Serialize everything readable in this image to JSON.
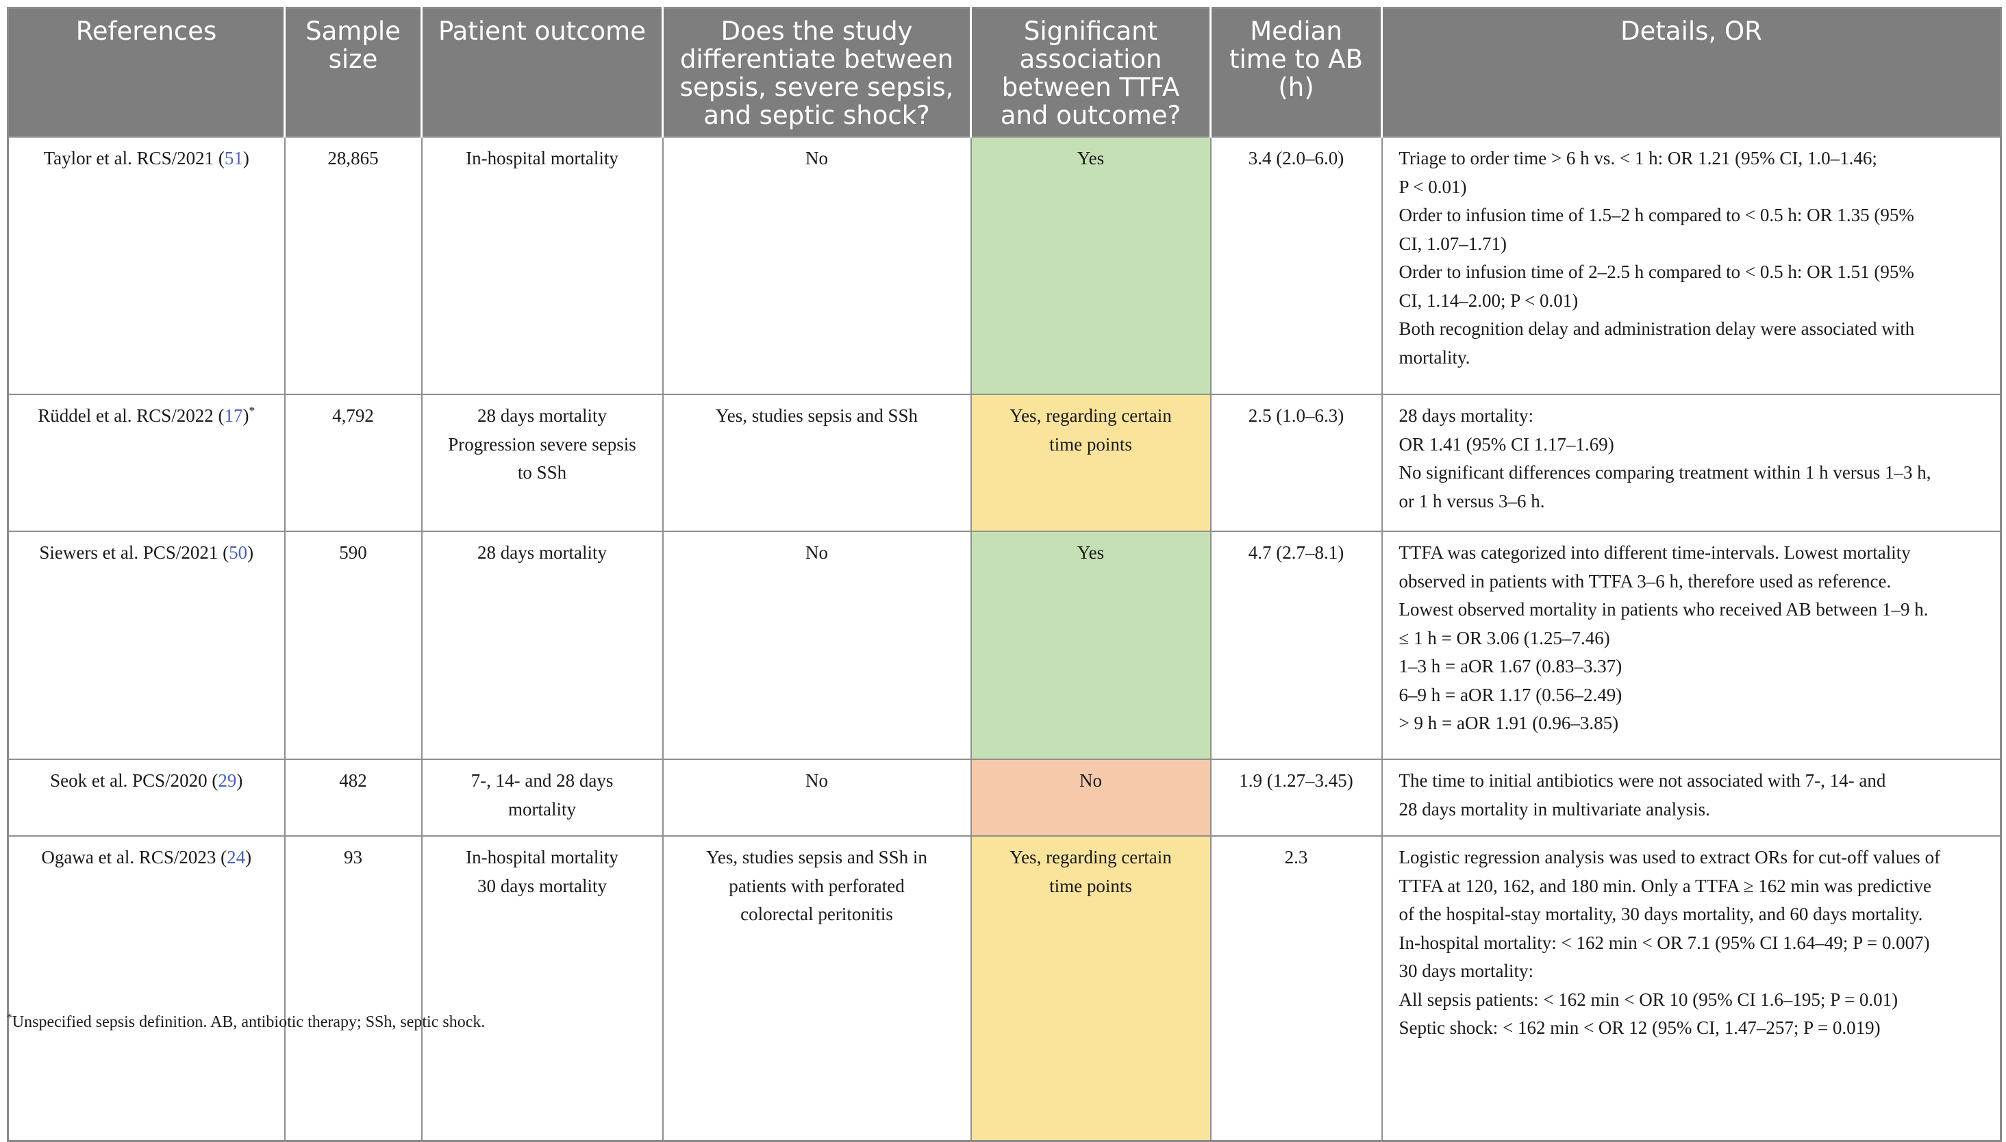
{
  "table": {
    "headers": [
      "References",
      "Sample size",
      "Patient outcome",
      "Does the study differentiate between sepsis, severe sepsis, and septic shock?",
      "Significant association between TTFA and outcome?",
      "Median time to AB (h)",
      "Details, OR"
    ],
    "rows": [
      {
        "ref_text": "Taylor et al. RCS/2021 (",
        "ref_num": "51",
        "ref_close": ")",
        "ref_mark": "",
        "sample_size": "28,865",
        "outcome": [
          "In-hospital mortality"
        ],
        "differentiate": [
          "No"
        ],
        "significant": [
          "Yes"
        ],
        "significant_color": "green",
        "median_time": "3.4 (2.0–6.0)",
        "details": [
          "Triage to order time > 6 h vs. < 1 h: OR 1.21 (95% CI, 1.0–1.46;",
          "P < 0.01)",
          "Order to infusion time of 1.5–2 h compared to < 0.5 h: OR 1.35 (95%",
          "CI, 1.07–1.71)",
          "Order to infusion time of 2–2.5 h compared to < 0.5 h: OR 1.51 (95%",
          "CI, 1.14–2.00; P < 0.01)",
          "Both recognition delay and administration delay were associated with",
          "mortality."
        ]
      },
      {
        "ref_text": "Rüddel et al. RCS/2022 (",
        "ref_num": "17",
        "ref_close": ")",
        "ref_mark": "*",
        "sample_size": "4,792",
        "outcome": [
          "28 days mortality",
          "Progression severe sepsis",
          "to SSh"
        ],
        "differentiate": [
          "Yes, studies sepsis and SSh"
        ],
        "significant": [
          "Yes, regarding certain",
          "time points"
        ],
        "significant_color": "yellow",
        "median_time": "2.5 (1.0–6.3)",
        "details": [
          "28 days mortality:",
          "OR 1.41 (95% CI 1.17–1.69)",
          "No significant differences comparing treatment within 1 h versus 1–3 h,",
          "or 1 h versus 3–6 h."
        ]
      },
      {
        "ref_text": "Siewers et al. PCS/2021 (",
        "ref_num": "50",
        "ref_close": ")",
        "ref_mark": "",
        "sample_size": "590",
        "outcome": [
          "28 days mortality"
        ],
        "differentiate": [
          "No"
        ],
        "significant": [
          "Yes"
        ],
        "significant_color": "green",
        "median_time": "4.7 (2.7–8.1)",
        "details": [
          "TTFA was categorized into different time-intervals. Lowest mortality",
          "observed in patients with TTFA 3–6 h, therefore used as reference.",
          "Lowest observed mortality in patients who received AB between 1–9 h.",
          "≤ 1 h = OR 3.06 (1.25–7.46)",
          "1–3 h = aOR 1.67 (0.83–3.37)",
          "6–9 h = aOR 1.17 (0.56–2.49)",
          "> 9 h = aOR 1.91 (0.96–3.85)"
        ]
      },
      {
        "ref_text": "Seok et al. PCS/2020 (",
        "ref_num": "29",
        "ref_close": ")",
        "ref_mark": "",
        "sample_size": "482",
        "outcome": [
          "7-, 14- and 28 days",
          "mortality"
        ],
        "differentiate": [
          "No"
        ],
        "significant": [
          "No"
        ],
        "significant_color": "red",
        "median_time": "1.9 (1.27–3.45)",
        "details": [
          "The time to initial antibiotics were not associated with 7-, 14- and",
          "28 days mortality in multivariate analysis."
        ]
      },
      {
        "ref_text": "Ogawa et al. RCS/2023 (",
        "ref_num": "24",
        "ref_close": ")",
        "ref_mark": "",
        "sample_size": "93",
        "outcome": [
          "In-hospital mortality",
          "30 days mortality"
        ],
        "differentiate": [
          "Yes, studies sepsis and SSh in",
          "patients with perforated",
          "colorectal peritonitis"
        ],
        "significant": [
          "Yes, regarding certain",
          "time points"
        ],
        "significant_color": "yellow",
        "median_time": "2.3",
        "details": [
          "Logistic regression analysis was used to extract ORs for cut-off values of",
          "TTFA at 120, 162, and 180 min. Only a TTFA ≥ 162 min was predictive",
          "of the hospital-stay mortality, 30 days mortality, and 60 days mortality.",
          "In-hospital mortality: < 162 min < OR 7.1 (95% CI 1.64–49; P = 0.007)",
          "30 days mortality:",
          "All sepsis patients: < 162 min < OR 10 (95% CI 1.6–195; P = 0.01)",
          "Septic shock: < 162 min < OR 12 (95% CI, 1.47–257; P = 0.019)"
        ]
      }
    ]
  },
  "colors": {
    "header_bg": "#7e7e7e",
    "green": "#c5e0b4",
    "yellow": "#fae49b",
    "red": "#f5c9aa",
    "link": "#4a5fbf"
  },
  "footnote": {
    "mark": "*",
    "text": "Unspecified sepsis definition. AB, antibiotic therapy; SSh, septic shock."
  }
}
